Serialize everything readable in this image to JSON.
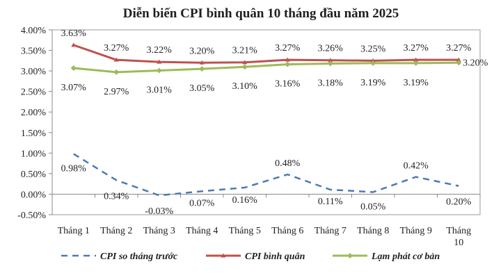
{
  "chart_data": {
    "type": "line",
    "title": "Diễn biến CPI bình quân 10 tháng đầu năm 2025",
    "categories": [
      [
        "Tháng 1"
      ],
      [
        "Tháng 2"
      ],
      [
        "Tháng 3"
      ],
      [
        "Tháng 4"
      ],
      [
        "Tháng 5"
      ],
      [
        "Tháng 6"
      ],
      [
        "Tháng 7"
      ],
      [
        "Tháng 8"
      ],
      [
        "Tháng 9"
      ],
      [
        "Tháng",
        "10"
      ]
    ],
    "yticks": [
      "-0.50%",
      "0.00%",
      "0.50%",
      "1.00%",
      "1.50%",
      "2.00%",
      "2.50%",
      "3.00%",
      "3.50%",
      "4.00%"
    ],
    "ylim": [
      -0.5,
      4.0
    ],
    "legend_position": "bottom",
    "grid": false,
    "series": [
      {
        "name": "CPI so tháng trước",
        "color": "#4a7ab5",
        "style": "dashed",
        "values": [
          0.98,
          0.34,
          -0.03,
          0.07,
          0.16,
          0.48,
          0.11,
          0.05,
          0.42,
          0.2
        ],
        "labels": [
          "0.98%",
          "0.34%",
          "-0.03%",
          "0.07%",
          "0.16%",
          "0.48%",
          "0.11%",
          "0.05%",
          "0.42%",
          "0.20%"
        ]
      },
      {
        "name": "CPI bình quân",
        "color": "#c0504d",
        "style": "solid",
        "marker": "triangle",
        "values": [
          3.63,
          3.27,
          3.22,
          3.2,
          3.21,
          3.27,
          3.26,
          3.25,
          3.27,
          3.27
        ],
        "labels": [
          "3.63%",
          "3.27%",
          "3.22%",
          "3.20%",
          "3.21%",
          "3.27%",
          "3.26%",
          "3.25%",
          "3.27%",
          "3.27%"
        ]
      },
      {
        "name": "Lạm phát cơ bản",
        "color": "#9bbb59",
        "style": "solid",
        "marker": "diamond",
        "values": [
          3.07,
          2.97,
          3.01,
          3.05,
          3.1,
          3.16,
          3.18,
          3.19,
          3.19,
          3.2
        ],
        "labels": [
          "3.07%",
          "2.97%",
          "3.01%",
          "3.05%",
          "3.10%",
          "3.16%",
          "3.18%",
          "3.19%",
          "3.19%",
          "3.20%"
        ]
      }
    ]
  }
}
